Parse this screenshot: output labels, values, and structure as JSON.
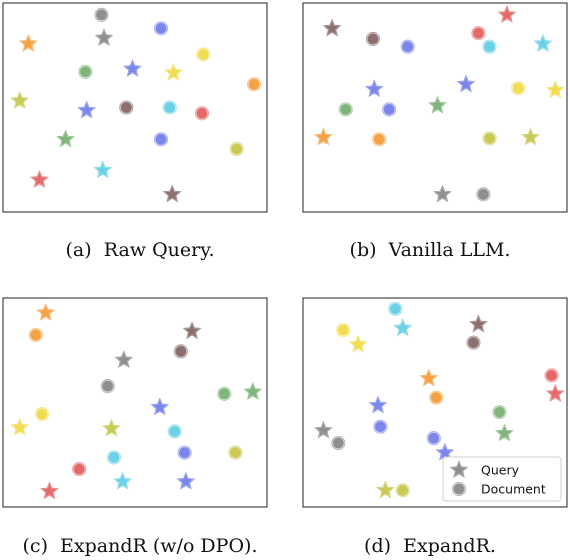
{
  "colors": {
    "gray": "#8f8f8f",
    "blue": "#7b86ea",
    "red": "#e46a6a",
    "orange": "#f4a245",
    "yellow": "#f2dc52",
    "green": "#7fb57b",
    "cyan": "#6cd1e6",
    "olive": "#c9c956",
    "brown": "#8c6f6f"
  },
  "legend": {
    "query": "Query",
    "document": "Document"
  },
  "chart_data": [
    {
      "type": "scatter",
      "caption": "(a)  Raw Query.",
      "xlim": [
        0,
        1
      ],
      "ylim": [
        0,
        1
      ],
      "grid": false,
      "points": [
        {
          "x": 0.365,
          "y": 0.98,
          "shape": "circle",
          "color": "gray"
        },
        {
          "x": 0.375,
          "y": 0.86,
          "shape": "star",
          "color": "gray"
        },
        {
          "x": 0.605,
          "y": 0.91,
          "shape": "circle",
          "color": "blue"
        },
        {
          "x": 0.07,
          "y": 0.83,
          "shape": "star",
          "color": "orange"
        },
        {
          "x": 0.775,
          "y": 0.775,
          "shape": "circle",
          "color": "yellow"
        },
        {
          "x": 0.49,
          "y": 0.7,
          "shape": "star",
          "color": "blue"
        },
        {
          "x": 0.655,
          "y": 0.68,
          "shape": "star",
          "color": "yellow"
        },
        {
          "x": 0.3,
          "y": 0.685,
          "shape": "circle",
          "color": "green"
        },
        {
          "x": 0.98,
          "y": 0.62,
          "shape": "circle",
          "color": "orange"
        },
        {
          "x": 0.035,
          "y": 0.535,
          "shape": "star",
          "color": "olive"
        },
        {
          "x": 0.305,
          "y": 0.485,
          "shape": "star",
          "color": "blue"
        },
        {
          "x": 0.465,
          "y": 0.5,
          "shape": "circle",
          "color": "brown"
        },
        {
          "x": 0.64,
          "y": 0.5,
          "shape": "circle",
          "color": "cyan"
        },
        {
          "x": 0.77,
          "y": 0.47,
          "shape": "circle",
          "color": "red"
        },
        {
          "x": 0.22,
          "y": 0.335,
          "shape": "star",
          "color": "green"
        },
        {
          "x": 0.605,
          "y": 0.335,
          "shape": "circle",
          "color": "blue"
        },
        {
          "x": 0.91,
          "y": 0.285,
          "shape": "circle",
          "color": "olive"
        },
        {
          "x": 0.37,
          "y": 0.175,
          "shape": "star",
          "color": "cyan"
        },
        {
          "x": 0.115,
          "y": 0.125,
          "shape": "star",
          "color": "red"
        },
        {
          "x": 0.65,
          "y": 0.05,
          "shape": "star",
          "color": "brown"
        }
      ]
    },
    {
      "type": "scatter",
      "caption": "(b)  Vanilla LLM.",
      "xlim": [
        0,
        1
      ],
      "ylim": [
        0,
        1
      ],
      "grid": false,
      "points": [
        {
          "x": 0.79,
          "y": 0.98,
          "shape": "star",
          "color": "red"
        },
        {
          "x": 0.085,
          "y": 0.91,
          "shape": "star",
          "color": "brown"
        },
        {
          "x": 0.25,
          "y": 0.855,
          "shape": "circle",
          "color": "brown"
        },
        {
          "x": 0.39,
          "y": 0.815,
          "shape": "circle",
          "color": "blue"
        },
        {
          "x": 0.675,
          "y": 0.885,
          "shape": "circle",
          "color": "red"
        },
        {
          "x": 0.72,
          "y": 0.815,
          "shape": "circle",
          "color": "cyan"
        },
        {
          "x": 0.935,
          "y": 0.83,
          "shape": "star",
          "color": "cyan"
        },
        {
          "x": 0.625,
          "y": 0.62,
          "shape": "star",
          "color": "blue"
        },
        {
          "x": 0.255,
          "y": 0.595,
          "shape": "star",
          "color": "blue"
        },
        {
          "x": 0.835,
          "y": 0.6,
          "shape": "circle",
          "color": "yellow"
        },
        {
          "x": 0.985,
          "y": 0.59,
          "shape": "star",
          "color": "yellow"
        },
        {
          "x": 0.51,
          "y": 0.51,
          "shape": "star",
          "color": "green"
        },
        {
          "x": 0.14,
          "y": 0.49,
          "shape": "circle",
          "color": "green"
        },
        {
          "x": 0.315,
          "y": 0.49,
          "shape": "circle",
          "color": "blue"
        },
        {
          "x": 0.05,
          "y": 0.345,
          "shape": "star",
          "color": "orange"
        },
        {
          "x": 0.275,
          "y": 0.335,
          "shape": "circle",
          "color": "orange"
        },
        {
          "x": 0.72,
          "y": 0.34,
          "shape": "circle",
          "color": "olive"
        },
        {
          "x": 0.885,
          "y": 0.345,
          "shape": "star",
          "color": "olive"
        },
        {
          "x": 0.53,
          "y": 0.05,
          "shape": "star",
          "color": "gray"
        },
        {
          "x": 0.695,
          "y": 0.05,
          "shape": "circle",
          "color": "gray"
        }
      ]
    },
    {
      "type": "scatter",
      "caption": "(c)  ExpandR (w/o DPO).",
      "xlim": [
        0,
        1
      ],
      "ylim": [
        0,
        1
      ],
      "grid": false,
      "points": [
        {
          "x": 0.14,
          "y": 0.965,
          "shape": "star",
          "color": "orange"
        },
        {
          "x": 0.1,
          "y": 0.85,
          "shape": "circle",
          "color": "orange"
        },
        {
          "x": 0.73,
          "y": 0.87,
          "shape": "star",
          "color": "brown"
        },
        {
          "x": 0.685,
          "y": 0.765,
          "shape": "circle",
          "color": "brown"
        },
        {
          "x": 0.455,
          "y": 0.72,
          "shape": "star",
          "color": "gray"
        },
        {
          "x": 0.39,
          "y": 0.585,
          "shape": "circle",
          "color": "gray"
        },
        {
          "x": 0.86,
          "y": 0.545,
          "shape": "circle",
          "color": "green"
        },
        {
          "x": 0.975,
          "y": 0.555,
          "shape": "star",
          "color": "green"
        },
        {
          "x": 0.6,
          "y": 0.475,
          "shape": "star",
          "color": "blue"
        },
        {
          "x": 0.125,
          "y": 0.44,
          "shape": "circle",
          "color": "yellow"
        },
        {
          "x": 0.035,
          "y": 0.37,
          "shape": "star",
          "color": "yellow"
        },
        {
          "x": 0.405,
          "y": 0.365,
          "shape": "star",
          "color": "olive"
        },
        {
          "x": 0.66,
          "y": 0.35,
          "shape": "circle",
          "color": "cyan"
        },
        {
          "x": 0.7,
          "y": 0.24,
          "shape": "circle",
          "color": "blue"
        },
        {
          "x": 0.905,
          "y": 0.24,
          "shape": "circle",
          "color": "olive"
        },
        {
          "x": 0.415,
          "y": 0.215,
          "shape": "circle",
          "color": "cyan"
        },
        {
          "x": 0.275,
          "y": 0.155,
          "shape": "circle",
          "color": "red"
        },
        {
          "x": 0.45,
          "y": 0.09,
          "shape": "star",
          "color": "cyan"
        },
        {
          "x": 0.705,
          "y": 0.09,
          "shape": "star",
          "color": "blue"
        },
        {
          "x": 0.155,
          "y": 0.04,
          "shape": "star",
          "color": "red"
        }
      ]
    },
    {
      "type": "scatter",
      "caption": "(d)  ExpandR.",
      "xlim": [
        0,
        1
      ],
      "ylim": [
        0,
        1
      ],
      "grid": false,
      "legend_position": "bottom-right",
      "points": [
        {
          "x": 0.34,
          "y": 0.985,
          "shape": "circle",
          "color": "cyan"
        },
        {
          "x": 0.37,
          "y": 0.885,
          "shape": "star",
          "color": "cyan"
        },
        {
          "x": 0.13,
          "y": 0.875,
          "shape": "circle",
          "color": "yellow"
        },
        {
          "x": 0.19,
          "y": 0.8,
          "shape": "star",
          "color": "yellow"
        },
        {
          "x": 0.675,
          "y": 0.905,
          "shape": "star",
          "color": "brown"
        },
        {
          "x": 0.655,
          "y": 0.81,
          "shape": "circle",
          "color": "brown"
        },
        {
          "x": 0.475,
          "y": 0.625,
          "shape": "star",
          "color": "orange"
        },
        {
          "x": 0.505,
          "y": 0.525,
          "shape": "circle",
          "color": "orange"
        },
        {
          "x": 0.97,
          "y": 0.64,
          "shape": "circle",
          "color": "red"
        },
        {
          "x": 0.985,
          "y": 0.545,
          "shape": "star",
          "color": "red"
        },
        {
          "x": 0.27,
          "y": 0.485,
          "shape": "star",
          "color": "blue"
        },
        {
          "x": 0.76,
          "y": 0.45,
          "shape": "circle",
          "color": "green"
        },
        {
          "x": 0.28,
          "y": 0.375,
          "shape": "circle",
          "color": "blue"
        },
        {
          "x": 0.78,
          "y": 0.34,
          "shape": "star",
          "color": "green"
        },
        {
          "x": 0.05,
          "y": 0.355,
          "shape": "star",
          "color": "gray"
        },
        {
          "x": 0.11,
          "y": 0.29,
          "shape": "circle",
          "color": "gray"
        },
        {
          "x": 0.495,
          "y": 0.315,
          "shape": "circle",
          "color": "blue"
        },
        {
          "x": 0.54,
          "y": 0.24,
          "shape": "star",
          "color": "blue"
        },
        {
          "x": 0.3,
          "y": 0.045,
          "shape": "star",
          "color": "olive"
        },
        {
          "x": 0.37,
          "y": 0.045,
          "shape": "circle",
          "color": "olive"
        }
      ]
    }
  ]
}
